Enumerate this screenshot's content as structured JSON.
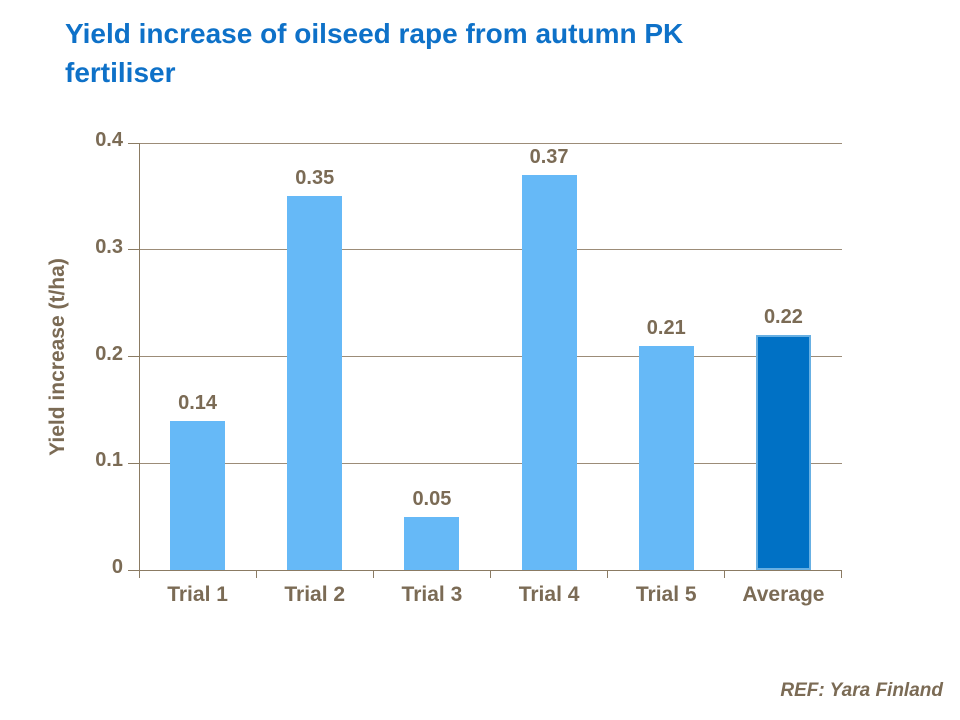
{
  "title": "Yield increase of oilseed rape from autumn PK fertiliser",
  "reference": "REF: Yara Finland",
  "colors": {
    "title": "#0E71C8",
    "bar": "#66B9F7",
    "highlight_bar": "#0071C5",
    "highlight_bar_border": "#68B0E3",
    "axis_text": "#7B6B55",
    "gridline": "#9C8C78",
    "axis_line": "#8B7B63"
  },
  "chart_data": {
    "type": "bar",
    "categories": [
      "Trial 1",
      "Trial 2",
      "Trial 3",
      "Trial 4",
      "Trial 5",
      "Average"
    ],
    "values": [
      0.14,
      0.35,
      0.05,
      0.37,
      0.21,
      0.22
    ],
    "data_labels": [
      "0.14",
      "0.35",
      "0.05",
      "0.37",
      "0.21",
      "0.22"
    ],
    "title": "Yield increase of oilseed rape from autumn PK fertiliser",
    "ylabel": "Yield increase (t/ha)",
    "xlabel": "",
    "ylim": [
      0,
      0.4
    ],
    "yticks": [
      0,
      0.1,
      0.2,
      0.3,
      0.4
    ],
    "ytick_labels": [
      "0",
      "0.1",
      "0.2",
      "0.3",
      "0.4"
    ],
    "grid": true,
    "legend": false,
    "highlight_category": "Average"
  }
}
